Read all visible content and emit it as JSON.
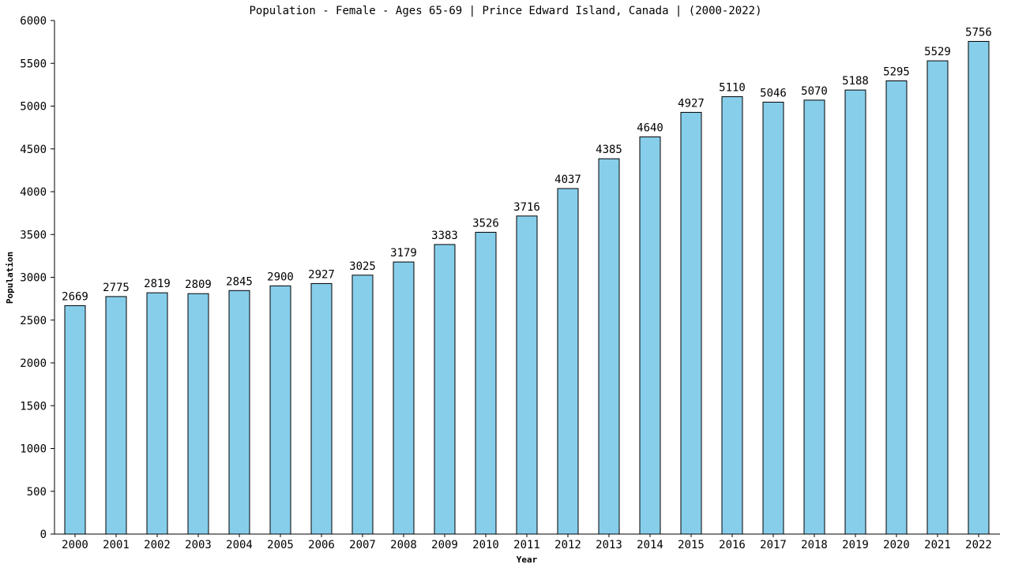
{
  "chart_data": {
    "type": "bar",
    "title": "Population - Female - Ages 65-69 | Prince Edward Island, Canada |  (2000-2022)",
    "xlabel": "Year",
    "ylabel": "Population",
    "ylim": [
      0,
      6000
    ],
    "yticks": [
      0,
      500,
      1000,
      1500,
      2000,
      2500,
      3000,
      3500,
      4000,
      4500,
      5000,
      5500,
      6000
    ],
    "categories": [
      "2000",
      "2001",
      "2002",
      "2003",
      "2004",
      "2005",
      "2006",
      "2007",
      "2008",
      "2009",
      "2010",
      "2011",
      "2012",
      "2013",
      "2014",
      "2015",
      "2016",
      "2017",
      "2018",
      "2019",
      "2020",
      "2021",
      "2022"
    ],
    "values": [
      2669,
      2775,
      2819,
      2809,
      2845,
      2900,
      2927,
      3025,
      3179,
      3383,
      3526,
      3716,
      4037,
      4385,
      4640,
      4927,
      5110,
      5046,
      5070,
      5188,
      5295,
      5529,
      5756
    ],
    "bar_color": "#87ceeb",
    "grid": false
  }
}
